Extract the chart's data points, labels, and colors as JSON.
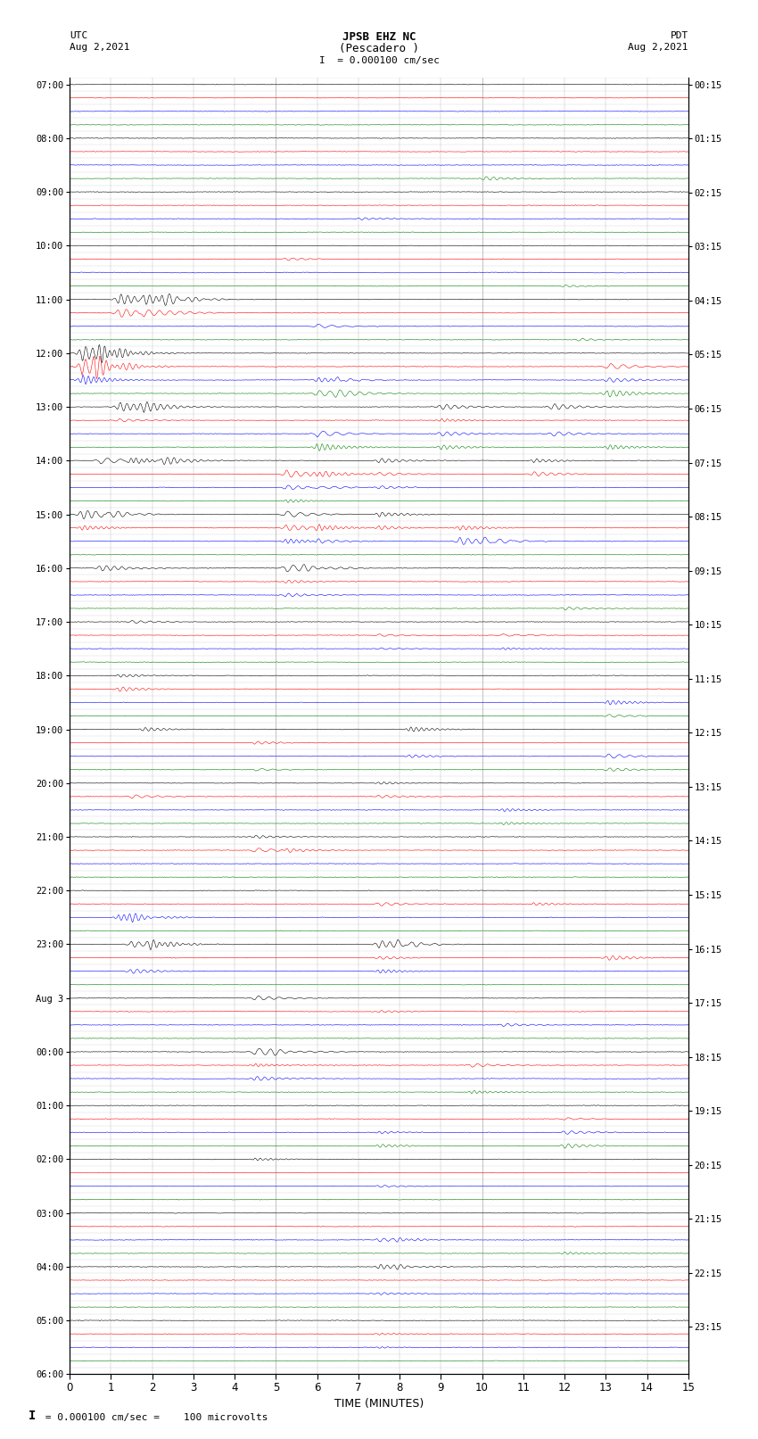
{
  "title_line1": "JPSB EHZ NC",
  "title_line2": "(Pescadero )",
  "scale_text": "I  = 0.000100 cm/sec",
  "left_label_top": "UTC",
  "left_label_date": "Aug 2,2021",
  "right_label_top": "PDT",
  "right_label_date": "Aug 2,2021",
  "xlabel": "TIME (MINUTES)",
  "footer_scale_char": "I",
  "footer_text": " = 0.000100 cm/sec =    100 microvolts",
  "utc_labels": [
    "07:00",
    "08:00",
    "09:00",
    "10:00",
    "11:00",
    "12:00",
    "13:00",
    "14:00",
    "15:00",
    "16:00",
    "17:00",
    "18:00",
    "19:00",
    "20:00",
    "21:00",
    "22:00",
    "23:00",
    "Aug 3",
    "00:00",
    "01:00",
    "02:00",
    "03:00",
    "04:00",
    "05:00",
    "06:00"
  ],
  "pdt_labels": [
    "00:15",
    "01:15",
    "02:15",
    "03:15",
    "04:15",
    "05:15",
    "06:15",
    "07:15",
    "08:15",
    "09:15",
    "10:15",
    "11:15",
    "12:15",
    "13:15",
    "14:15",
    "15:15",
    "16:15",
    "17:15",
    "18:15",
    "19:15",
    "20:15",
    "21:15",
    "22:15",
    "23:15"
  ],
  "colors": [
    "black",
    "red",
    "blue",
    "green"
  ],
  "num_hours": 24,
  "traces_per_hour": 4,
  "minutes": 15,
  "seed": 42
}
